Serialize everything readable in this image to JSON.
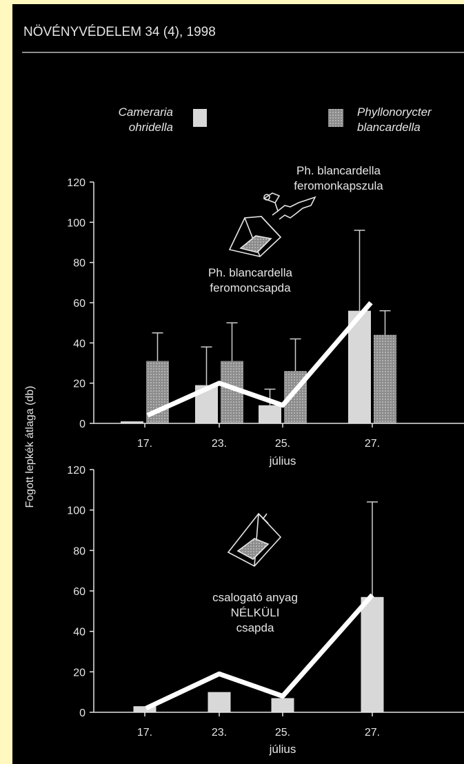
{
  "header": {
    "journal": "NÖVÉNYVÉDELEM 34 (4), 1998"
  },
  "legend": [
    {
      "label_line1": "Cameraria",
      "label_line2": "ohridella",
      "color": "#d8d8d8"
    },
    {
      "label_line1": "Phyllonorycter",
      "label_line2": "blancardella",
      "color": "#9a9a9a"
    }
  ],
  "annotations": {
    "capsule_line1": "Ph. blancardella",
    "capsule_line2": "feromonkapszula",
    "trap_line1": "Ph. blancardella",
    "trap_line2": "feromoncsapda",
    "bottom_line1": "csalogató anyag",
    "bottom_line2": "NÉLKÜLI",
    "bottom_line3": "csapda"
  },
  "colors": {
    "background": "#000000",
    "text": "#e6e6e6",
    "camera": "#d8d8d8",
    "phyllo": "#9a9a9a",
    "trend": "#ffffff"
  },
  "icons": [
    "capsule-icon",
    "trap-icon"
  ],
  "chart_data": [
    {
      "type": "bar",
      "title": "",
      "xlabel": "július",
      "ylabel": "Fogott lepkék átlaga (db)",
      "ylim": [
        0,
        120
      ],
      "yticks": [
        "0",
        "20",
        "40",
        "60",
        "80",
        "100",
        "120"
      ],
      "categories": [
        "17.",
        "23.",
        "25.",
        "27."
      ],
      "series": [
        {
          "name": "Cameraria ohridella",
          "values": [
            1,
            19,
            9,
            56
          ],
          "error": [
            0,
            19,
            8,
            40
          ]
        },
        {
          "name": "Phyllonorycter blancardella",
          "values": [
            31,
            31,
            26,
            44
          ],
          "error": [
            14,
            19,
            16,
            12
          ]
        }
      ],
      "trend_line": [
        4,
        20,
        9,
        60
      ]
    },
    {
      "type": "bar",
      "title": "",
      "xlabel": "július",
      "ylabel": "Fogott lepkék átlaga (db)",
      "ylim": [
        0,
        120
      ],
      "yticks": [
        "0",
        "20",
        "40",
        "60",
        "80",
        "100",
        "120"
      ],
      "categories": [
        "17.",
        "23.",
        "25.",
        "27."
      ],
      "series": [
        {
          "name": "Cameraria ohridella",
          "values": [
            3,
            10,
            7,
            57
          ],
          "error": [
            0,
            0,
            0,
            47
          ]
        }
      ],
      "trend_line": [
        2,
        19,
        8,
        58
      ]
    }
  ]
}
